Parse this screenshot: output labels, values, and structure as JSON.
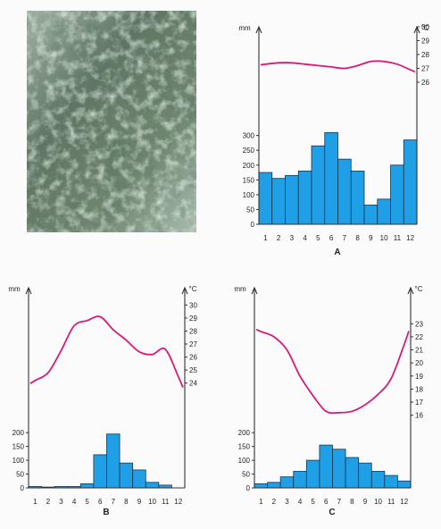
{
  "photo": {
    "icon": "rainforest-photo"
  },
  "colors": {
    "bar": "#1fa0e6",
    "bar_stroke": "#1a3550",
    "temp_line": "#d81b7a"
  },
  "chart_data": [
    {
      "type": "bar",
      "title": "A",
      "precip_unit": "mm",
      "temp_unit": "°C",
      "categories": [
        "1",
        "2",
        "3",
        "4",
        "5",
        "6",
        "7",
        "8",
        "9",
        "10",
        "11",
        "12"
      ],
      "series": [
        {
          "axis": "left",
          "type": "bar",
          "values": [
            175,
            155,
            165,
            180,
            265,
            310,
            220,
            180,
            65,
            85,
            200,
            285
          ]
        },
        {
          "axis": "right",
          "type": "line",
          "values": [
            27.3,
            27.4,
            27.4,
            27.3,
            27.2,
            27.1,
            27.0,
            27.2,
            27.5,
            27.5,
            27.3,
            26.9
          ]
        }
      ],
      "precip_ticks": [
        0,
        50,
        100,
        150,
        200,
        250,
        300
      ],
      "temp_ticks": [
        26,
        27,
        28,
        29,
        30
      ],
      "ylim_precip": [
        0,
        320
      ],
      "ylim_temp": [
        26,
        30
      ]
    },
    {
      "type": "bar",
      "title": "B",
      "precip_unit": "mm",
      "temp_unit": "°C",
      "categories": [
        "1",
        "2",
        "3",
        "4",
        "5",
        "6",
        "7",
        "8",
        "9",
        "10",
        "11",
        "12"
      ],
      "series": [
        {
          "axis": "left",
          "type": "bar",
          "values": [
            5,
            3,
            5,
            5,
            15,
            120,
            195,
            90,
            65,
            20,
            10,
            0
          ]
        },
        {
          "axis": "right",
          "type": "line",
          "values": [
            24.2,
            24.8,
            26.5,
            28.4,
            28.8,
            29.1,
            28.1,
            27.3,
            26.4,
            26.2,
            26.6,
            24.5
          ]
        }
      ],
      "precip_ticks": [
        0,
        50,
        100,
        150,
        200
      ],
      "temp_ticks": [
        24,
        25,
        26,
        27,
        28,
        29,
        30
      ],
      "ylim_precip": [
        0,
        220
      ],
      "ylim_temp": [
        23.5,
        30.5
      ]
    },
    {
      "type": "bar",
      "title": "C",
      "precip_unit": "mm",
      "temp_unit": "°C",
      "categories": [
        "1",
        "2",
        "3",
        "4",
        "5",
        "6",
        "7",
        "8",
        "9",
        "10",
        "11",
        "12"
      ],
      "series": [
        {
          "axis": "left",
          "type": "bar",
          "values": [
            15,
            20,
            40,
            60,
            100,
            155,
            140,
            110,
            90,
            60,
            45,
            25
          ]
        },
        {
          "axis": "right",
          "type": "line",
          "values": [
            22.4,
            22.0,
            21.0,
            19.0,
            17.5,
            16.3,
            16.2,
            16.3,
            16.8,
            17.6,
            18.8,
            21.4
          ]
        }
      ],
      "precip_ticks": [
        0,
        50,
        100,
        150,
        200
      ],
      "temp_ticks": [
        16,
        17,
        18,
        19,
        20,
        21,
        22,
        23
      ],
      "ylim_precip": [
        0,
        220
      ],
      "ylim_temp": [
        15.5,
        23.5
      ]
    }
  ]
}
